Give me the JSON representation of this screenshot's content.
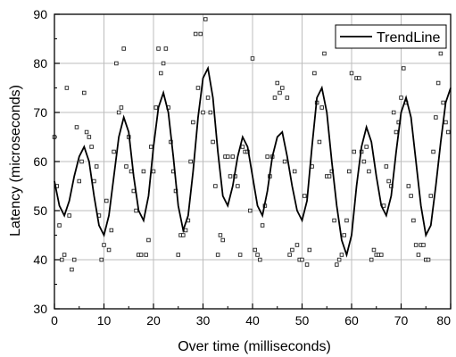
{
  "chart_data": {
    "type": "scatter",
    "xlabel": "Over time (milliseconds)",
    "ylabel": "Latency (microseconds)",
    "xlim": [
      0,
      80
    ],
    "ylim": [
      30,
      90
    ],
    "x_ticks": [
      "0",
      "10",
      "20",
      "30",
      "40",
      "50",
      "60",
      "70",
      "80"
    ],
    "y_ticks": [
      "30",
      "40",
      "50",
      "60",
      "70",
      "80",
      "90"
    ],
    "grid": true,
    "legend_position": "top-right",
    "series": [
      {
        "type": "scatter",
        "marker": "open-square",
        "points": [
          [
            0,
            65
          ],
          [
            0.5,
            55
          ],
          [
            1,
            47
          ],
          [
            1.5,
            40
          ],
          [
            2,
            41
          ],
          [
            2.5,
            75
          ],
          [
            3,
            49
          ],
          [
            3.5,
            38
          ],
          [
            4,
            40
          ],
          [
            4.5,
            67
          ],
          [
            5,
            56
          ],
          [
            5.5,
            60
          ],
          [
            6,
            74
          ],
          [
            6.5,
            66
          ],
          [
            7,
            65
          ],
          [
            7.5,
            63
          ],
          [
            8,
            56
          ],
          [
            8.5,
            59
          ],
          [
            9,
            49
          ],
          [
            9.5,
            40
          ],
          [
            10,
            43
          ],
          [
            10.5,
            52
          ],
          [
            11,
            42
          ],
          [
            11.5,
            46
          ],
          [
            12,
            62
          ],
          [
            12.5,
            80
          ],
          [
            13,
            70
          ],
          [
            13.5,
            71
          ],
          [
            14,
            83
          ],
          [
            14.5,
            59
          ],
          [
            15,
            65
          ],
          [
            15.5,
            58
          ],
          [
            16,
            54
          ],
          [
            16.5,
            50
          ],
          [
            17,
            41
          ],
          [
            17.5,
            41
          ],
          [
            18,
            58
          ],
          [
            18.5,
            41
          ],
          [
            19,
            44
          ],
          [
            19.5,
            63
          ],
          [
            20,
            58
          ],
          [
            20.5,
            71
          ],
          [
            21,
            83
          ],
          [
            21.5,
            78
          ],
          [
            22,
            80
          ],
          [
            22.5,
            83
          ],
          [
            23,
            71
          ],
          [
            23.5,
            64
          ],
          [
            24,
            58
          ],
          [
            24.5,
            54
          ],
          [
            25,
            41
          ],
          [
            25.5,
            45
          ],
          [
            26,
            45
          ],
          [
            26.5,
            46
          ],
          [
            27,
            48
          ],
          [
            27.5,
            60
          ],
          [
            28,
            68
          ],
          [
            28.5,
            86
          ],
          [
            29,
            75
          ],
          [
            29.5,
            86
          ],
          [
            30,
            70
          ],
          [
            30.5,
            89
          ],
          [
            31,
            73
          ],
          [
            31.5,
            70
          ],
          [
            32,
            64
          ],
          [
            32.5,
            55
          ],
          [
            33,
            41
          ],
          [
            33.5,
            45
          ],
          [
            34,
            44
          ],
          [
            34.5,
            61
          ],
          [
            35,
            61
          ],
          [
            35.5,
            57
          ],
          [
            36,
            61
          ],
          [
            36.5,
            57
          ],
          [
            37,
            55
          ],
          [
            37.5,
            41
          ],
          [
            38,
            63
          ],
          [
            38.5,
            62
          ],
          [
            39,
            62
          ],
          [
            39.5,
            50
          ],
          [
            40,
            81
          ],
          [
            40.5,
            42
          ],
          [
            41,
            41
          ],
          [
            41.5,
            40
          ],
          [
            42,
            47
          ],
          [
            42.5,
            51
          ],
          [
            43,
            61
          ],
          [
            43.5,
            57
          ],
          [
            44,
            61
          ],
          [
            44.5,
            73
          ],
          [
            45,
            76
          ],
          [
            45.5,
            74
          ],
          [
            46,
            75
          ],
          [
            46.5,
            60
          ],
          [
            47,
            73
          ],
          [
            47.5,
            41
          ],
          [
            48,
            42
          ],
          [
            48.5,
            58
          ],
          [
            49,
            43
          ],
          [
            49.5,
            40
          ],
          [
            50,
            40
          ],
          [
            50.5,
            53
          ],
          [
            51,
            39
          ],
          [
            51.5,
            42
          ],
          [
            52,
            59
          ],
          [
            52.5,
            78
          ],
          [
            53,
            72
          ],
          [
            53.5,
            64
          ],
          [
            54,
            71
          ],
          [
            54.5,
            82
          ],
          [
            55,
            57
          ],
          [
            55.5,
            57
          ],
          [
            56,
            58
          ],
          [
            56.5,
            48
          ],
          [
            57,
            39
          ],
          [
            57.5,
            40
          ],
          [
            58,
            41
          ],
          [
            58.5,
            45
          ],
          [
            59,
            48
          ],
          [
            59.5,
            58
          ],
          [
            60,
            78
          ],
          [
            60.5,
            62
          ],
          [
            61,
            77
          ],
          [
            61.5,
            77
          ],
          [
            62,
            62
          ],
          [
            62.5,
            60
          ],
          [
            63,
            63
          ],
          [
            63.5,
            58
          ],
          [
            64,
            40
          ],
          [
            64.5,
            42
          ],
          [
            65,
            41
          ],
          [
            65.5,
            41
          ],
          [
            66,
            41
          ],
          [
            66.5,
            51
          ],
          [
            67,
            59
          ],
          [
            67.5,
            56
          ],
          [
            68,
            55
          ],
          [
            68.5,
            70
          ],
          [
            69,
            66
          ],
          [
            69.5,
            68
          ],
          [
            70,
            73
          ],
          [
            70.5,
            79
          ],
          [
            71,
            72
          ],
          [
            71.5,
            55
          ],
          [
            72,
            53
          ],
          [
            72.5,
            48
          ],
          [
            73,
            43
          ],
          [
            73.5,
            41
          ],
          [
            74,
            43
          ],
          [
            74.5,
            43
          ],
          [
            75,
            40
          ],
          [
            75.5,
            40
          ],
          [
            76,
            53
          ],
          [
            76.5,
            62
          ],
          [
            77,
            69
          ],
          [
            77.5,
            76
          ],
          [
            78,
            82
          ],
          [
            78.5,
            72
          ],
          [
            79,
            68
          ],
          [
            79.5,
            66
          ]
        ]
      },
      {
        "name": "TrendLine",
        "type": "line",
        "points": [
          [
            0,
            56
          ],
          [
            1,
            51
          ],
          [
            2,
            49
          ],
          [
            3,
            52
          ],
          [
            4,
            57
          ],
          [
            5,
            61
          ],
          [
            6,
            63
          ],
          [
            7,
            60
          ],
          [
            8,
            53
          ],
          [
            9,
            47
          ],
          [
            10,
            45
          ],
          [
            11,
            49
          ],
          [
            12,
            57
          ],
          [
            13,
            65
          ],
          [
            14,
            69
          ],
          [
            15,
            66
          ],
          [
            16,
            57
          ],
          [
            17,
            50
          ],
          [
            18,
            48
          ],
          [
            19,
            53
          ],
          [
            20,
            63
          ],
          [
            21,
            71
          ],
          [
            22,
            74
          ],
          [
            23,
            70
          ],
          [
            24,
            61
          ],
          [
            25,
            51
          ],
          [
            26,
            46
          ],
          [
            27,
            49
          ],
          [
            28,
            58
          ],
          [
            29,
            69
          ],
          [
            30,
            77
          ],
          [
            31,
            79
          ],
          [
            32,
            73
          ],
          [
            33,
            62
          ],
          [
            34,
            53
          ],
          [
            35,
            51
          ],
          [
            36,
            55
          ],
          [
            37,
            61
          ],
          [
            38,
            65
          ],
          [
            39,
            63
          ],
          [
            40,
            57
          ],
          [
            41,
            51
          ],
          [
            42,
            49
          ],
          [
            43,
            54
          ],
          [
            44,
            61
          ],
          [
            45,
            65
          ],
          [
            46,
            66
          ],
          [
            47,
            61
          ],
          [
            48,
            55
          ],
          [
            49,
            50
          ],
          [
            50,
            48
          ],
          [
            51,
            52
          ],
          [
            52,
            63
          ],
          [
            53,
            73
          ],
          [
            54,
            75
          ],
          [
            55,
            70
          ],
          [
            56,
            60
          ],
          [
            57,
            51
          ],
          [
            58,
            44
          ],
          [
            59,
            41
          ],
          [
            60,
            45
          ],
          [
            61,
            55
          ],
          [
            62,
            63
          ],
          [
            63,
            67
          ],
          [
            64,
            64
          ],
          [
            65,
            57
          ],
          [
            66,
            51
          ],
          [
            67,
            49
          ],
          [
            68,
            53
          ],
          [
            69,
            62
          ],
          [
            70,
            70
          ],
          [
            71,
            73
          ],
          [
            72,
            69
          ],
          [
            73,
            60
          ],
          [
            74,
            51
          ],
          [
            75,
            45
          ],
          [
            76,
            47
          ],
          [
            77,
            55
          ],
          [
            78,
            64
          ],
          [
            79,
            72
          ],
          [
            80,
            75
          ]
        ]
      }
    ]
  }
}
